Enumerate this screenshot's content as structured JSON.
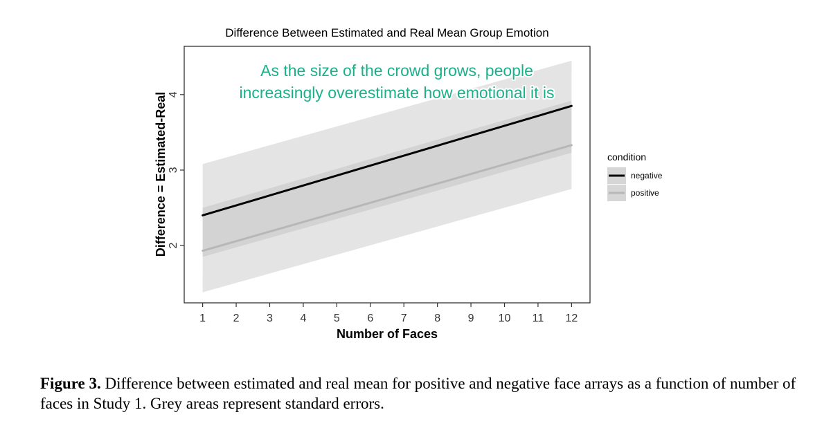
{
  "chart_data": {
    "type": "line",
    "title": "Difference Between Estimated and Real Mean Group Emotion",
    "xlabel": "Number of Faces",
    "ylabel": "Difference = Estimated-Real",
    "xlim": [
      0.45,
      12.55
    ],
    "ylim": [
      1.24,
      4.64
    ],
    "x_ticks": [
      1,
      2,
      3,
      4,
      5,
      6,
      7,
      8,
      9,
      10,
      11,
      12
    ],
    "y_ticks": [
      2,
      3,
      4
    ],
    "grid": false,
    "legend": {
      "title": "condition",
      "position": "right"
    },
    "annotation": {
      "lines": [
        "As the size of the crowd grows, people",
        "increasingly overestimate how emotional it is"
      ],
      "color": "#1bb08a"
    },
    "series": [
      {
        "name": "negative",
        "color": "#000000",
        "x": [
          1,
          12
        ],
        "y": [
          2.4,
          3.85
        ],
        "ci_lower": [
          1.85,
          3.23
        ],
        "ci_upper": [
          3.08,
          4.45
        ]
      },
      {
        "name": "positive",
        "color": "#b7b7b7",
        "x": [
          1,
          12
        ],
        "y": [
          1.93,
          3.33
        ],
        "ci_lower": [
          1.38,
          2.75
        ],
        "ci_upper": [
          2.5,
          3.92
        ]
      }
    ]
  },
  "caption": {
    "label": "Figure 3.",
    "text": " Difference between estimated and real mean for positive and negative face arrays as a function of number of faces in Study 1. Grey areas represent standard errors."
  }
}
